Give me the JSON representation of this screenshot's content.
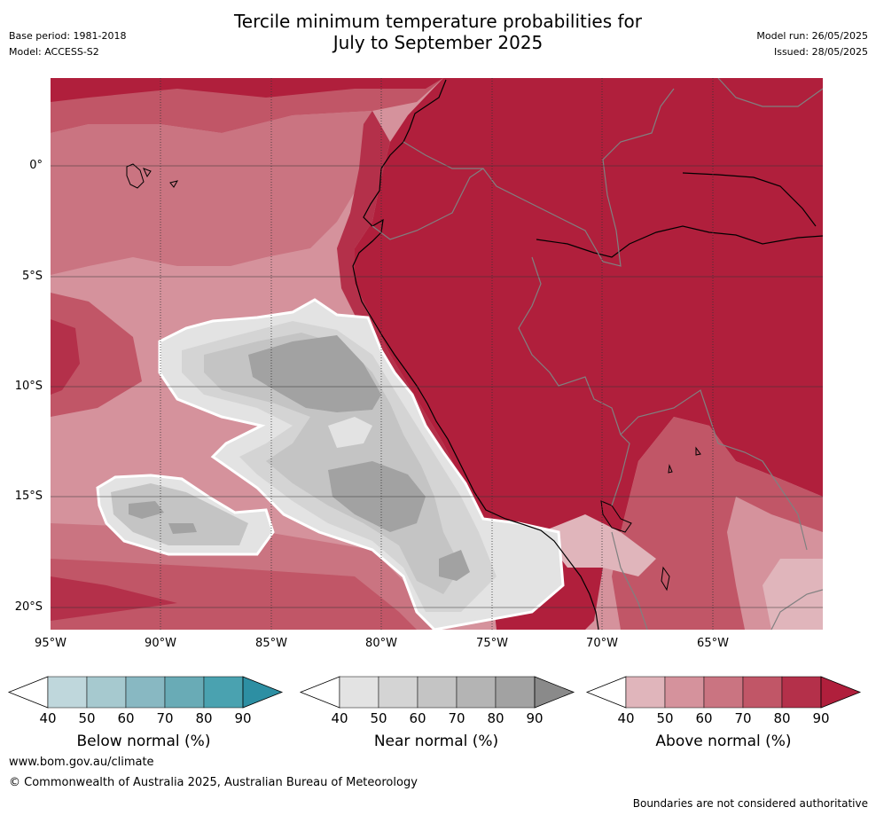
{
  "title": {
    "line1": "Tercile minimum temperature probabilities for",
    "line2": "July to September 2025"
  },
  "meta": {
    "base_period": "Base period: 1981-2018",
    "model": "Model: ACCESS-S2",
    "model_run": "Model run: 26/05/2025",
    "issued": "Issued: 28/05/2025"
  },
  "map": {
    "lat_labels": [
      "0°",
      "5°S",
      "10°S",
      "15°S",
      "20°S"
    ],
    "lon_labels": [
      "95°W",
      "90°W",
      "85°W",
      "80°W",
      "75°W",
      "70°W",
      "65°W"
    ]
  },
  "legends": [
    {
      "title": "Below normal (%)",
      "ticks": [
        "40",
        "50",
        "60",
        "70",
        "80",
        "90"
      ],
      "colors": [
        "#bfd7dc",
        "#a6c9cf",
        "#88b8c2",
        "#69abb6",
        "#4aa2b0",
        "#2d8fa3"
      ]
    },
    {
      "title": "Near normal (%)",
      "ticks": [
        "40",
        "50",
        "60",
        "70",
        "80",
        "90"
      ],
      "colors": [
        "#e3e3e3",
        "#d4d4d4",
        "#c4c4c4",
        "#b4b4b4",
        "#a2a2a2",
        "#8a8a8a"
      ]
    },
    {
      "title": "Above normal (%)",
      "ticks": [
        "40",
        "50",
        "60",
        "70",
        "80",
        "90"
      ],
      "colors": [
        "#e0b5bb",
        "#d5929c",
        "#ca7481",
        "#c15667",
        "#b4304a",
        "#b01f3c"
      ]
    }
  ],
  "colors": {
    "above_90": "#b01f3c",
    "above_80": "#b4304a",
    "above_70": "#c15667",
    "above_60": "#ca7481",
    "above_50": "#d5929c",
    "above_40": "#e0b5bb",
    "near_40": "#e3e3e3",
    "near_50": "#d4d4d4",
    "near_60": "#c4c4c4",
    "near_70": "#b4b4b4",
    "near_80": "#a2a2a2"
  },
  "footer": {
    "url": "www.bom.gov.au/climate",
    "copyright": "© Commonwealth of Australia 2025, Australian Bureau of Meteorology",
    "note": "Boundaries are not considered authoritative"
  }
}
